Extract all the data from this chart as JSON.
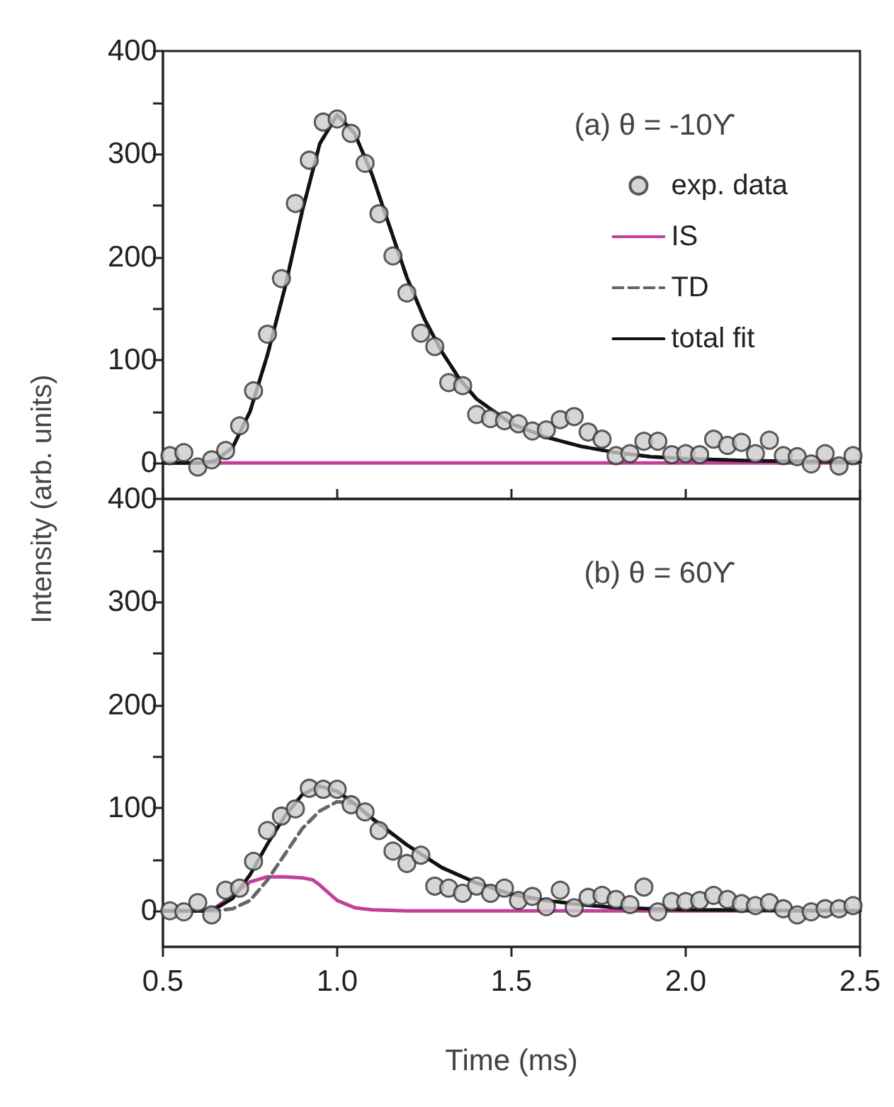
{
  "chart_data": [
    {
      "type": "line",
      "ylabel": "Intensity (arb. units)",
      "annotations": [
        "(a) θ = -10ϒ"
      ],
      "xlim": [
        0.5,
        2.5
      ],
      "xticks": [
        {
          "value": 0.5,
          "label": null
        },
        {
          "value": 1,
          "label": null
        },
        {
          "value": 1.5,
          "label": null
        },
        {
          "value": 2,
          "label": null
        },
        {
          "value": 2.5,
          "label": null
        }
      ],
      "ylim": [
        -35,
        400
      ],
      "yticks": [
        0,
        {
          "value": 50,
          "label": null
        },
        100,
        {
          "value": 150,
          "label": null
        },
        200,
        {
          "value": 250,
          "label": null
        },
        300,
        {
          "value": 350,
          "label": null
        },
        400
      ],
      "tick_labels": "y",
      "grid": false,
      "legend": "top right",
      "series": [
        {
          "name": "IS",
          "type": "line",
          "line_style": "solid",
          "color": "#c2409a",
          "x": [
            0.5,
            1.0,
            1.5,
            2.0,
            2.5
          ],
          "values": [
            0,
            0,
            0,
            0,
            0
          ]
        },
        {
          "name": "TD",
          "type": "line",
          "line_style": "dashed",
          "color": "#666666",
          "x": [
            0.5,
            0.6,
            0.65,
            0.7,
            0.75,
            0.8,
            0.85,
            0.9,
            0.95,
            1.0,
            1.05,
            1.1,
            1.15,
            1.2,
            1.25,
            1.3,
            1.35,
            1.4,
            1.5,
            1.6,
            1.7,
            1.8,
            1.9,
            2.0,
            2.2,
            2.5
          ],
          "values": [
            0,
            0,
            2,
            15,
            50,
            105,
            170,
            245,
            310,
            338,
            320,
            280,
            230,
            180,
            140,
            108,
            82,
            62,
            38,
            25,
            16,
            10,
            6,
            4,
            2,
            1
          ]
        },
        {
          "name": "total fit",
          "type": "line",
          "line_style": "solid",
          "color": "#111111",
          "x": [
            0.5,
            0.6,
            0.65,
            0.7,
            0.75,
            0.8,
            0.85,
            0.9,
            0.95,
            1.0,
            1.05,
            1.1,
            1.15,
            1.2,
            1.25,
            1.3,
            1.35,
            1.4,
            1.5,
            1.6,
            1.7,
            1.8,
            1.9,
            2.0,
            2.2,
            2.5
          ],
          "values": [
            0,
            0,
            2,
            15,
            50,
            105,
            170,
            245,
            310,
            338,
            320,
            280,
            230,
            180,
            140,
            108,
            82,
            62,
            38,
            25,
            16,
            10,
            6,
            4,
            2,
            1
          ]
        },
        {
          "name": "exp. data",
          "type": "scatter",
          "marker": "circle",
          "color": "#cccccc",
          "x": [
            0.52,
            0.56,
            0.6,
            0.64,
            0.68,
            0.72,
            0.76,
            0.8,
            0.84,
            0.88,
            0.92,
            0.96,
            1.0,
            1.04,
            1.08,
            1.12,
            1.16,
            1.2,
            1.24,
            1.28,
            1.32,
            1.36,
            1.4,
            1.44,
            1.48,
            1.52,
            1.56,
            1.6,
            1.64,
            1.68,
            1.72,
            1.76,
            1.8,
            1.84,
            1.88,
            1.92,
            1.96,
            2.0,
            2.04,
            2.08,
            2.12,
            2.16,
            2.2,
            2.24,
            2.28,
            2.32,
            2.36,
            2.4,
            2.44,
            2.48
          ],
          "values": [
            7,
            10,
            -4,
            3,
            12,
            36,
            70,
            125,
            179,
            252,
            294,
            331,
            334,
            320,
            291,
            242,
            201,
            165,
            126,
            113,
            78,
            75,
            47,
            43,
            41,
            38,
            31,
            32,
            42,
            45,
            30,
            23,
            7,
            9,
            21,
            21,
            8,
            9,
            8,
            23,
            17,
            20,
            9,
            22,
            7,
            6,
            -1,
            9,
            -3,
            7
          ]
        }
      ]
    },
    {
      "type": "line",
      "xlabel": "Time (ms)",
      "annotations": [
        "(b) θ = 60ϒ"
      ],
      "xlim": [
        0.5,
        2.5
      ],
      "xticks": [
        0.5,
        {
          "value": 1,
          "label": "1.0"
        },
        1.5,
        {
          "value": 2,
          "label": "2.0"
        },
        2.5
      ],
      "ylim": [
        -35,
        400
      ],
      "yticks": [
        0,
        {
          "value": 50,
          "label": null
        },
        100,
        {
          "value": 150,
          "label": null
        },
        200,
        {
          "value": 250,
          "label": null
        },
        300,
        {
          "value": 350,
          "label": null
        },
        400
      ],
      "grid": false,
      "series": [
        {
          "type": "line",
          "line_style": "solid",
          "color": "#c2409a",
          "x": [
            0.5,
            0.62,
            0.65,
            0.7,
            0.75,
            0.8,
            0.85,
            0.9,
            0.93,
            0.95,
            1.0,
            1.05,
            1.1,
            1.2,
            2.5
          ],
          "values": [
            0,
            0,
            3,
            15,
            28,
            33,
            33,
            32,
            30,
            25,
            10,
            3,
            1,
            0,
            0
          ]
        },
        {
          "type": "line",
          "line_style": "dashed",
          "color": "#666666",
          "x": [
            0.5,
            0.65,
            0.7,
            0.75,
            0.8,
            0.85,
            0.9,
            0.95,
            1.0,
            1.05,
            1.1,
            1.2,
            1.3,
            1.4,
            1.5,
            1.6,
            1.7,
            1.8,
            2.0,
            2.5
          ],
          "values": [
            0,
            0,
            2,
            10,
            30,
            55,
            80,
            97,
            106,
            104,
            89,
            64,
            42,
            27,
            16,
            10,
            6,
            3,
            1,
            0
          ]
        },
        {
          "type": "line",
          "line_style": "solid",
          "color": "#111111",
          "x": [
            0.5,
            0.62,
            0.65,
            0.7,
            0.75,
            0.8,
            0.85,
            0.9,
            0.95,
            1.0,
            1.05,
            1.1,
            1.2,
            1.3,
            1.4,
            1.5,
            1.6,
            1.7,
            1.8,
            2.0,
            2.5
          ],
          "values": [
            0,
            0,
            2,
            12,
            35,
            65,
            92,
            113,
            121,
            116,
            104,
            90,
            64,
            42,
            27,
            16,
            10,
            6,
            3,
            1,
            0
          ]
        },
        {
          "type": "scatter",
          "marker": "circle",
          "color": "#cccccc",
          "x": [
            0.52,
            0.56,
            0.6,
            0.64,
            0.68,
            0.72,
            0.76,
            0.8,
            0.84,
            0.88,
            0.92,
            0.96,
            1.0,
            1.04,
            1.08,
            1.12,
            1.16,
            1.2,
            1.24,
            1.28,
            1.32,
            1.36,
            1.4,
            1.44,
            1.48,
            1.52,
            1.56,
            1.6,
            1.64,
            1.68,
            1.72,
            1.76,
            1.8,
            1.84,
            1.88,
            1.92,
            1.96,
            2.0,
            2.04,
            2.08,
            2.12,
            2.16,
            2.2,
            2.24,
            2.28,
            2.32,
            2.36,
            2.4,
            2.44,
            2.48
          ],
          "values": [
            0,
            -1,
            8,
            -4,
            20,
            22,
            48,
            78,
            92,
            99,
            119,
            118,
            118,
            103,
            96,
            78,
            58,
            46,
            54,
            24,
            22,
            17,
            24,
            17,
            22,
            10,
            14,
            4,
            20,
            3,
            13,
            15,
            11,
            6,
            23,
            -1,
            9,
            9,
            10,
            15,
            11,
            7,
            5,
            8,
            2,
            -4,
            -1,
            2,
            2,
            5
          ]
        }
      ]
    }
  ]
}
